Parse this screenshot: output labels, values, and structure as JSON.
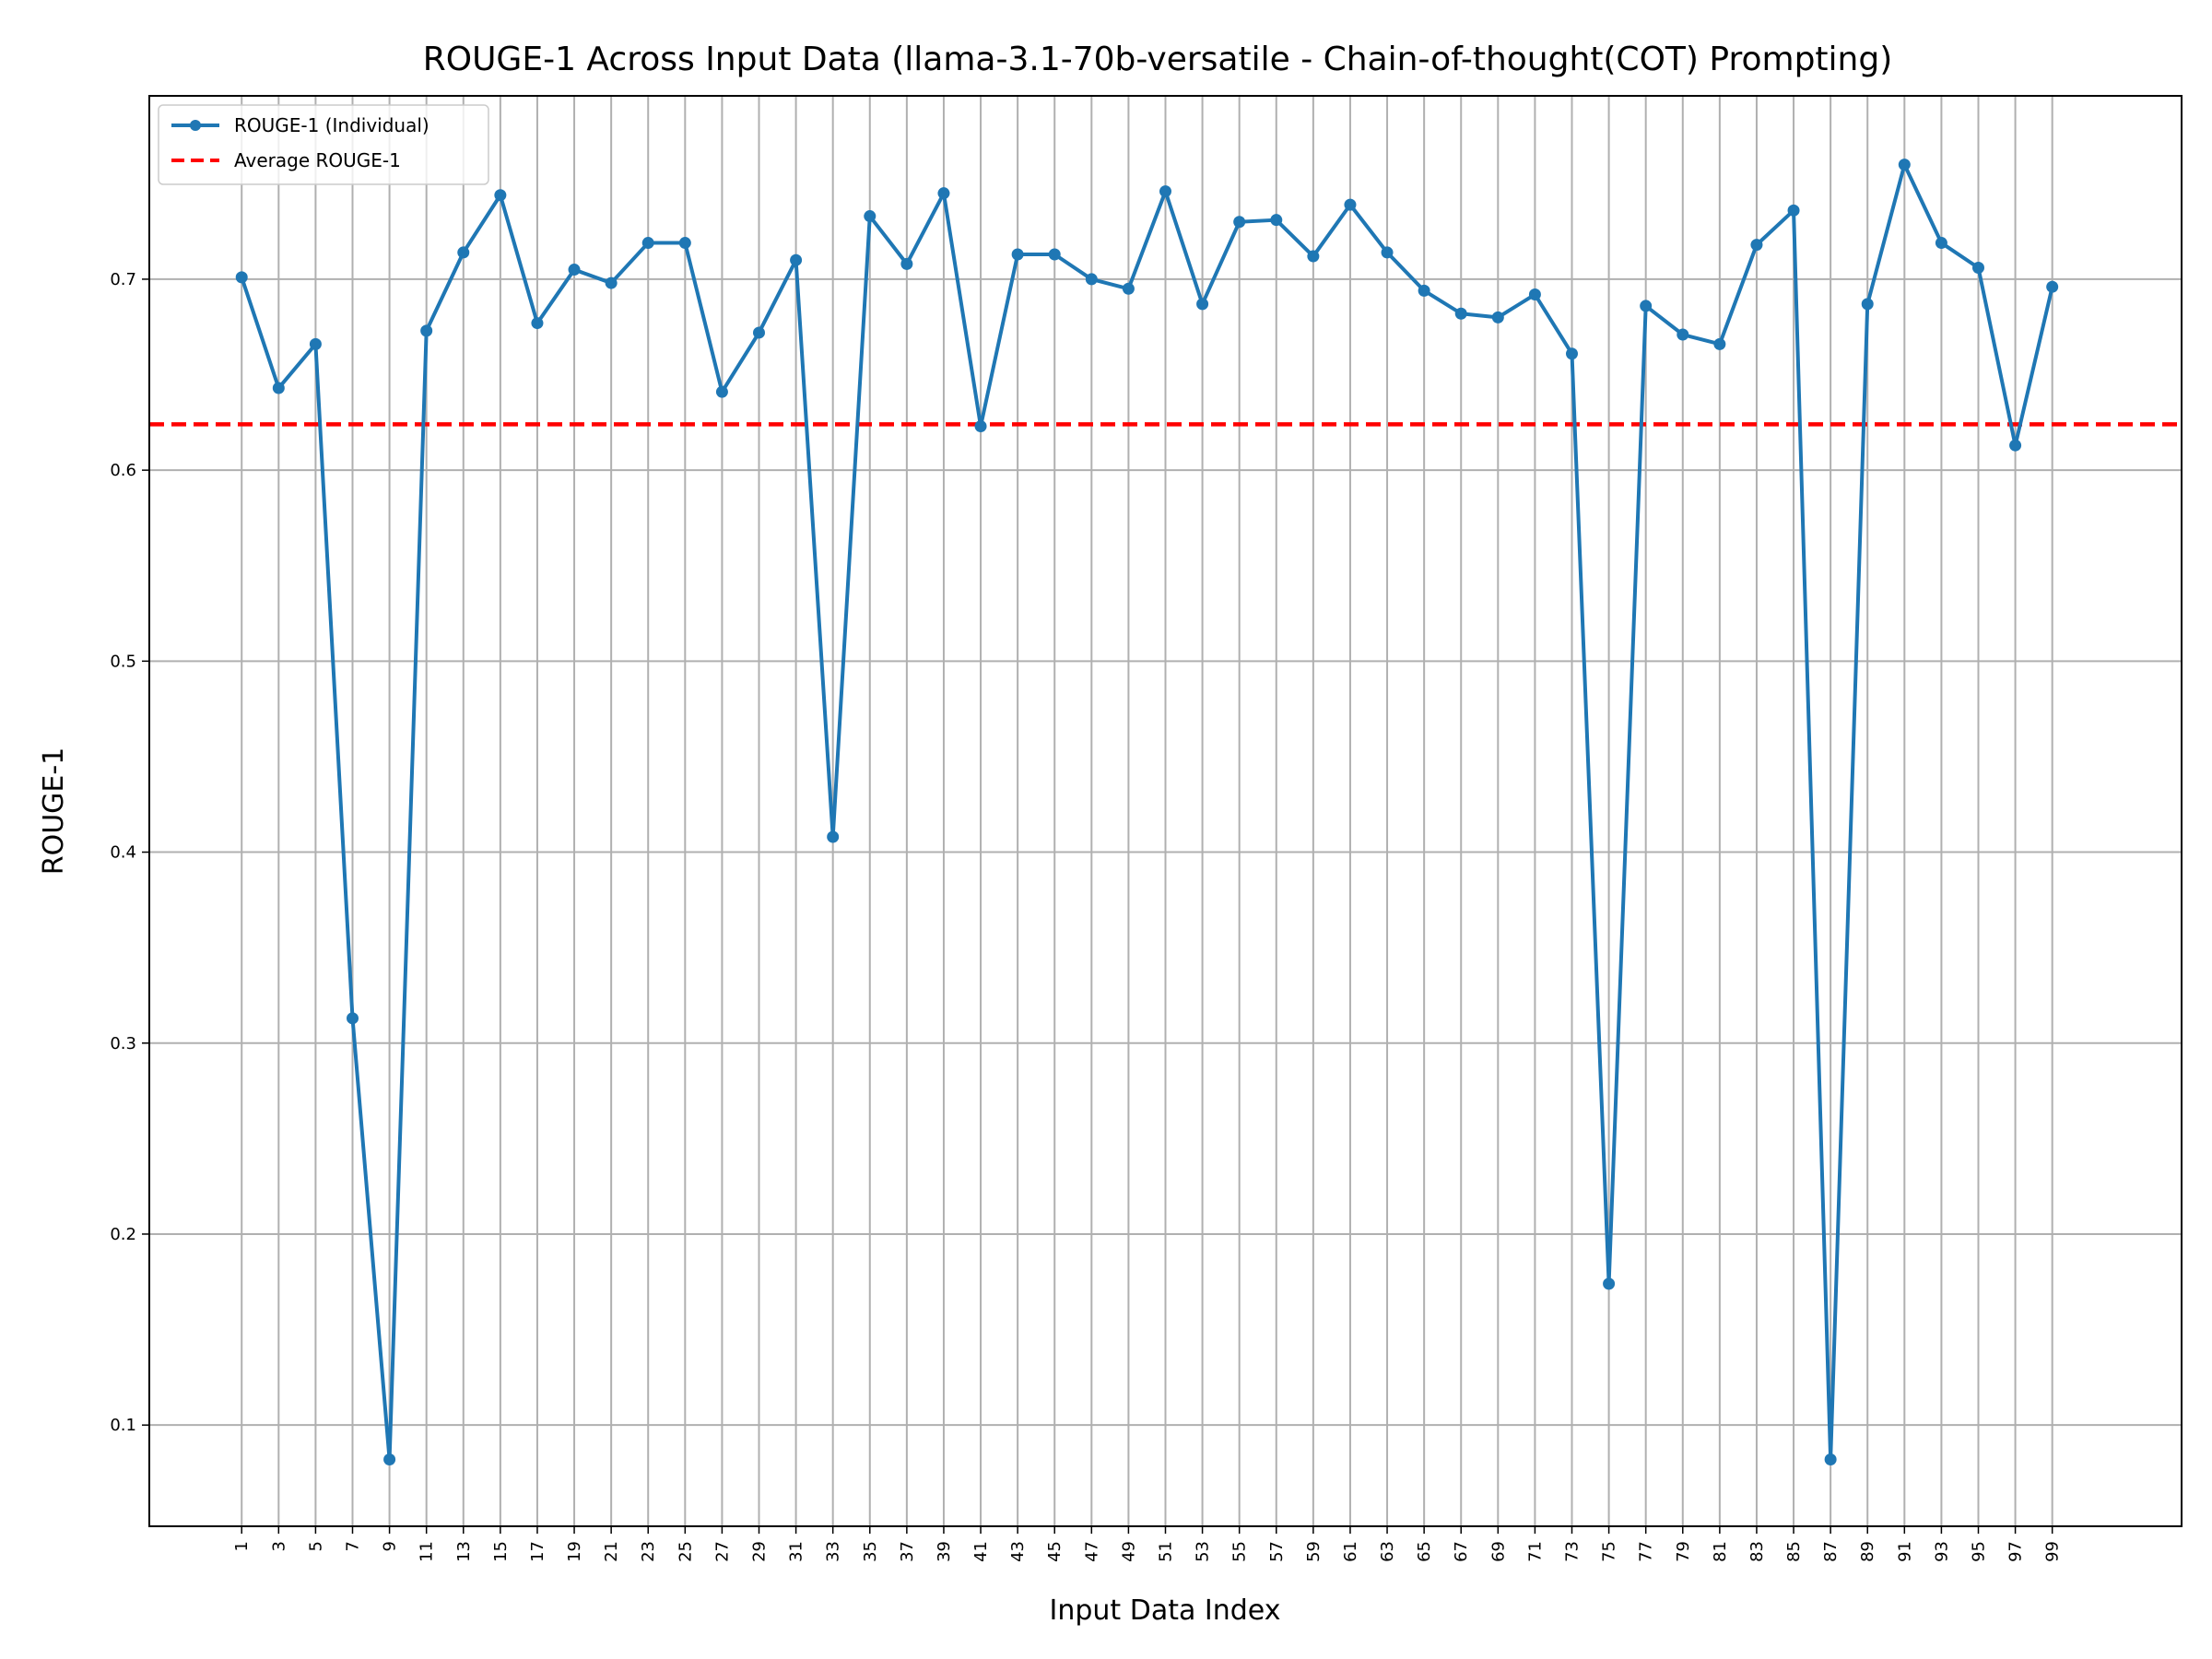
{
  "chart_data": {
    "type": "line",
    "title": "ROUGE-1 Across Input Data (llama-3.1-70b-versatile - Chain-of-thought(COT) Prompting)",
    "xlabel": "Input Data Index",
    "ylabel": "ROUGE-1",
    "x": [
      1,
      3,
      5,
      7,
      9,
      11,
      13,
      15,
      17,
      19,
      21,
      23,
      25,
      27,
      29,
      31,
      33,
      35,
      37,
      39,
      41,
      43,
      45,
      47,
      49,
      51,
      53,
      55,
      57,
      59,
      61,
      63,
      65,
      67,
      69,
      71,
      73,
      75,
      77,
      79,
      81,
      83,
      85,
      87,
      89,
      91,
      93,
      95,
      97,
      99
    ],
    "x_tick_labels": [
      "1",
      "3",
      "5",
      "7",
      "9",
      "11",
      "13",
      "15",
      "17",
      "19",
      "21",
      "23",
      "25",
      "27",
      "29",
      "31",
      "33",
      "35",
      "37",
      "39",
      "41",
      "43",
      "45",
      "47",
      "49",
      "51",
      "53",
      "55",
      "57",
      "59",
      "61",
      "63",
      "65",
      "67",
      "69",
      "71",
      "73",
      "75",
      "77",
      "79",
      "81",
      "83",
      "85",
      "87",
      "89",
      "91",
      "93",
      "95",
      "97",
      "99"
    ],
    "xlim": [
      -4,
      106
    ],
    "ylim": [
      0.047,
      0.796
    ],
    "y_ticks": [
      0.1,
      0.2,
      0.3,
      0.4,
      0.5,
      0.6,
      0.7
    ],
    "y_tick_labels": [
      "0.1",
      "0.2",
      "0.3",
      "0.4",
      "0.5",
      "0.6",
      "0.7"
    ],
    "grid": true,
    "legend_position": "top-left",
    "series": [
      {
        "name": "ROUGE-1 (Individual)",
        "color": "#1f77b4",
        "style": "solid-with-markers",
        "values": [
          0.701,
          0.643,
          0.666,
          0.313,
          0.082,
          0.673,
          0.714,
          0.744,
          0.677,
          0.705,
          0.698,
          0.719,
          0.719,
          0.641,
          0.672,
          0.71,
          0.408,
          0.733,
          0.708,
          0.745,
          0.623,
          0.713,
          0.713,
          0.7,
          0.695,
          0.746,
          0.687,
          0.73,
          0.731,
          0.712,
          0.739,
          0.714,
          0.694,
          0.682,
          0.68,
          0.692,
          0.661,
          0.174,
          0.686,
          0.671,
          0.666,
          0.718,
          0.736,
          0.082,
          0.687,
          0.76,
          0.719,
          0.706,
          0.613,
          0.696
        ]
      },
      {
        "name": "Average ROUGE-1",
        "color": "#ff0000",
        "style": "dashed",
        "value": 0.624
      }
    ]
  }
}
